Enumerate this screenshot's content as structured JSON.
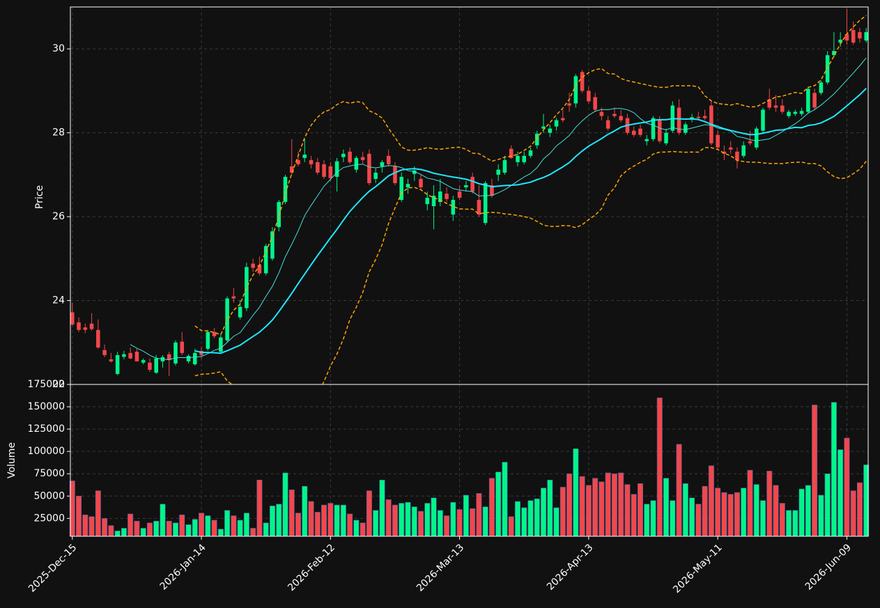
{
  "chart_data": {
    "type": "candlestick",
    "ylabel": "Price",
    "volume_label": "Volume",
    "categories": [
      "2025-Dec-15",
      null,
      null,
      null,
      null,
      null,
      null,
      null,
      null,
      null,
      null,
      null,
      null,
      null,
      null,
      null,
      null,
      null,
      null,
      null,
      "2026-Jan-14",
      null,
      null,
      null,
      null,
      null,
      null,
      null,
      null,
      null,
      null,
      null,
      null,
      null,
      null,
      null,
      null,
      null,
      null,
      null,
      "2026-Feb-12",
      null,
      null,
      null,
      null,
      null,
      null,
      null,
      null,
      null,
      null,
      null,
      null,
      null,
      null,
      null,
      null,
      null,
      null,
      null,
      "2026-Mar-13",
      null,
      null,
      null,
      null,
      null,
      null,
      null,
      null,
      null,
      null,
      null,
      null,
      null,
      null,
      null,
      null,
      null,
      null,
      null,
      "2026-Apr-13",
      null,
      null,
      null,
      null,
      null,
      null,
      null,
      null,
      null,
      null,
      null,
      null,
      null,
      null,
      null,
      null,
      null,
      null,
      null,
      "2026-May-11",
      null,
      null,
      null,
      null,
      null,
      null,
      null,
      null,
      null,
      null,
      null,
      null,
      null,
      null,
      null,
      null,
      null,
      null,
      null,
      "2026-Jun-09",
      null,
      null,
      null
    ],
    "open": [
      23.72,
      23.48,
      23.36,
      23.45,
      23.3,
      22.82,
      22.6,
      22.25,
      22.66,
      22.75,
      22.78,
      22.52,
      22.52,
      22.28,
      22.55,
      22.72,
      22.5,
      23.02,
      22.55,
      22.48,
      22.8,
      22.85,
      23.25,
      22.78,
      23.05,
      24.1,
      23.6,
      23.82,
      24.88,
      24.85,
      24.65,
      25.0,
      25.75,
      26.35,
      27.2,
      27.35,
      27.4,
      27.35,
      27.3,
      27.25,
      27.2,
      26.95,
      27.42,
      27.55,
      27.12,
      27.42,
      27.5,
      26.9,
      27.2,
      27.45,
      27.2,
      26.4,
      26.7,
      27.02,
      26.9,
      26.3,
      26.25,
      26.35,
      26.55,
      26.05,
      26.6,
      26.7,
      26.95,
      26.4,
      25.85,
      26.75,
      27.0,
      27.05,
      27.62,
      27.3,
      27.3,
      27.45,
      27.7,
      28.1,
      28.0,
      28.15,
      28.35,
      28.7,
      28.7,
      29.45,
      29.0,
      28.85,
      28.5,
      28.3,
      28.45,
      28.4,
      28.35,
      28.05,
      28.1,
      27.8,
      27.85,
      28.3,
      27.75,
      28.05,
      28.6,
      28.0,
      28.33,
      28.38,
      28.4,
      28.65,
      27.95,
      27.55,
      27.65,
      27.55,
      27.45,
      27.8,
      27.65,
      28.05,
      28.8,
      28.65,
      28.65,
      28.4,
      28.45,
      28.45,
      28.5,
      28.95,
      28.95,
      29.2,
      29.85,
      30.15,
      30.35,
      30.45,
      30.4,
      30.2
    ],
    "high": [
      23.95,
      23.6,
      23.45,
      23.7,
      23.55,
      22.95,
      22.75,
      22.78,
      22.8,
      22.88,
      22.85,
      22.62,
      22.62,
      22.7,
      22.7,
      22.78,
      23.05,
      23.25,
      22.72,
      22.85,
      22.9,
      23.3,
      23.35,
      23.2,
      24.1,
      24.3,
      24.0,
      24.9,
      25.0,
      25.05,
      25.35,
      25.75,
      26.4,
      27.0,
      27.85,
      27.55,
      27.85,
      27.45,
      27.4,
      27.35,
      27.3,
      27.4,
      27.6,
      27.65,
      27.45,
      27.55,
      27.6,
      27.15,
      27.35,
      27.6,
      27.3,
      27.05,
      26.9,
      27.2,
      27.0,
      26.6,
      26.75,
      26.9,
      26.7,
      26.5,
      26.75,
      26.85,
      27.05,
      26.75,
      26.85,
      26.9,
      27.25,
      27.45,
      27.7,
      27.55,
      27.55,
      27.65,
      28.05,
      28.45,
      28.2,
      28.35,
      28.55,
      28.95,
      29.4,
      29.5,
      29.1,
      28.95,
      28.6,
      28.4,
      28.6,
      28.55,
      28.45,
      28.15,
      28.2,
      27.95,
      28.4,
      28.4,
      28.1,
      28.75,
      28.8,
      28.25,
      28.45,
      28.5,
      28.55,
      28.75,
      28.05,
      27.7,
      27.8,
      27.65,
      27.8,
      28.05,
      28.15,
      28.6,
      29.05,
      28.9,
      28.8,
      28.55,
      28.55,
      28.6,
      29.1,
      29.05,
      29.25,
      29.95,
      30.4,
      30.4,
      30.95,
      30.65,
      30.5,
      30.5
    ],
    "low": [
      23.4,
      23.25,
      23.22,
      23.28,
      22.85,
      22.65,
      22.52,
      22.22,
      22.6,
      22.6,
      22.55,
      22.48,
      22.3,
      22.25,
      22.4,
      22.2,
      22.45,
      22.7,
      22.5,
      22.45,
      22.62,
      22.8,
      23.1,
      22.72,
      23.0,
      23.95,
      23.55,
      23.75,
      24.68,
      24.6,
      24.6,
      24.95,
      25.65,
      26.3,
      27.0,
      27.2,
      27.3,
      27.15,
      27.0,
      26.9,
      26.85,
      26.6,
      27.3,
      27.25,
      27.05,
      27.25,
      26.75,
      26.8,
      27.05,
      27.2,
      26.75,
      26.35,
      26.55,
      26.85,
      26.65,
      26.15,
      25.7,
      26.25,
      26.35,
      25.9,
      26.4,
      26.6,
      26.55,
      26.0,
      25.8,
      26.45,
      26.85,
      27.0,
      27.38,
      27.2,
      27.25,
      27.4,
      27.62,
      28.0,
      27.9,
      28.05,
      28.25,
      28.5,
      28.6,
      28.95,
      28.7,
      28.5,
      28.3,
      28.05,
      28.35,
      28.25,
      27.95,
      27.9,
      27.9,
      27.7,
      27.8,
      27.75,
      27.7,
      28.0,
      27.95,
      27.95,
      28.25,
      28.3,
      28.3,
      27.7,
      27.6,
      27.35,
      27.5,
      27.15,
      27.4,
      27.7,
      27.6,
      28.0,
      28.55,
      28.5,
      28.45,
      28.35,
      28.4,
      28.4,
      28.45,
      28.55,
      28.9,
      29.15,
      29.8,
      30.05,
      30.1,
      30.1,
      30.15,
      30.15
    ],
    "close": [
      23.43,
      23.3,
      23.3,
      23.32,
      22.88,
      22.7,
      22.55,
      22.7,
      22.72,
      22.62,
      22.55,
      22.58,
      22.35,
      22.62,
      22.65,
      22.58,
      23.0,
      22.75,
      22.68,
      22.75,
      22.7,
      23.25,
      23.15,
      23.12,
      24.05,
      24.05,
      23.85,
      24.8,
      24.78,
      24.65,
      25.3,
      25.65,
      26.35,
      26.95,
      27.05,
      27.25,
      27.48,
      27.25,
      27.05,
      26.95,
      26.92,
      27.32,
      27.5,
      27.3,
      27.4,
      27.35,
      26.8,
      27.05,
      27.3,
      27.25,
      26.8,
      26.95,
      26.78,
      27.1,
      26.7,
      26.45,
      26.5,
      26.6,
      26.42,
      26.4,
      26.45,
      26.75,
      26.6,
      26.05,
      26.8,
      26.5,
      27.12,
      27.35,
      27.4,
      27.45,
      27.45,
      27.58,
      27.98,
      28.15,
      28.1,
      28.3,
      28.3,
      28.65,
      29.35,
      29.0,
      28.75,
      28.55,
      28.4,
      28.1,
      28.4,
      28.3,
      28.0,
      27.95,
      27.95,
      27.85,
      28.35,
      27.8,
      28.0,
      28.65,
      28.0,
      28.2,
      28.37,
      28.35,
      28.35,
      27.75,
      27.65,
      27.5,
      27.6,
      27.35,
      27.7,
      27.75,
      28.1,
      28.55,
      28.6,
      28.6,
      28.5,
      28.5,
      28.5,
      28.52,
      29.05,
      28.6,
      29.2,
      29.85,
      29.95,
      30.22,
      30.2,
      30.15,
      30.25,
      30.4
    ],
    "volume": [
      67000,
      50000,
      29000,
      27000,
      56000,
      25000,
      17000,
      11000,
      14000,
      30000,
      22000,
      14000,
      20000,
      22000,
      41000,
      22000,
      20000,
      29000,
      18000,
      24000,
      31000,
      28000,
      23000,
      13000,
      34000,
      28000,
      23000,
      31000,
      14000,
      68000,
      20000,
      39000,
      41000,
      76000,
      57000,
      31000,
      61000,
      44000,
      32000,
      40000,
      42000,
      40000,
      40000,
      30000,
      23000,
      20000,
      56000,
      34000,
      68000,
      46000,
      40000,
      42000,
      43000,
      38000,
      33000,
      42000,
      48000,
      34000,
      28000,
      43000,
      35000,
      51000,
      36000,
      53000,
      38000,
      70000,
      77000,
      88000,
      27000,
      44000,
      37000,
      45000,
      47000,
      59000,
      68000,
      37000,
      60000,
      75000,
      103000,
      72000,
      62000,
      70000,
      66000,
      76000,
      75000,
      76000,
      63000,
      52000,
      64000,
      41000,
      45000,
      160000,
      70000,
      45000,
      108000,
      64000,
      48000,
      41000,
      61000,
      84000,
      59000,
      54000,
      52000,
      54000,
      59000,
      79000,
      63000,
      45000,
      78000,
      62000,
      42000,
      34000,
      34000,
      58000,
      62000,
      152000,
      51000,
      75000,
      155000,
      102000,
      115000,
      56000,
      65000,
      85000
    ],
    "up_color": "#00f58a",
    "down_color": "#f2474b",
    "moving_averages": [
      {
        "window": 10,
        "color": "#48e0e0"
      },
      {
        "window": 20,
        "color": "#1ee8ff"
      }
    ],
    "bollinger": {
      "window": 20,
      "std": 2,
      "color": "#ffa500"
    },
    "ylim": [
      22,
      31
    ],
    "yticks": [
      22,
      24,
      26,
      28,
      30
    ],
    "volume_ylim": [
      5000,
      175000
    ],
    "volume_yticks": [
      25000,
      50000,
      75000,
      100000,
      125000,
      150000,
      175000
    ],
    "grid": true
  }
}
